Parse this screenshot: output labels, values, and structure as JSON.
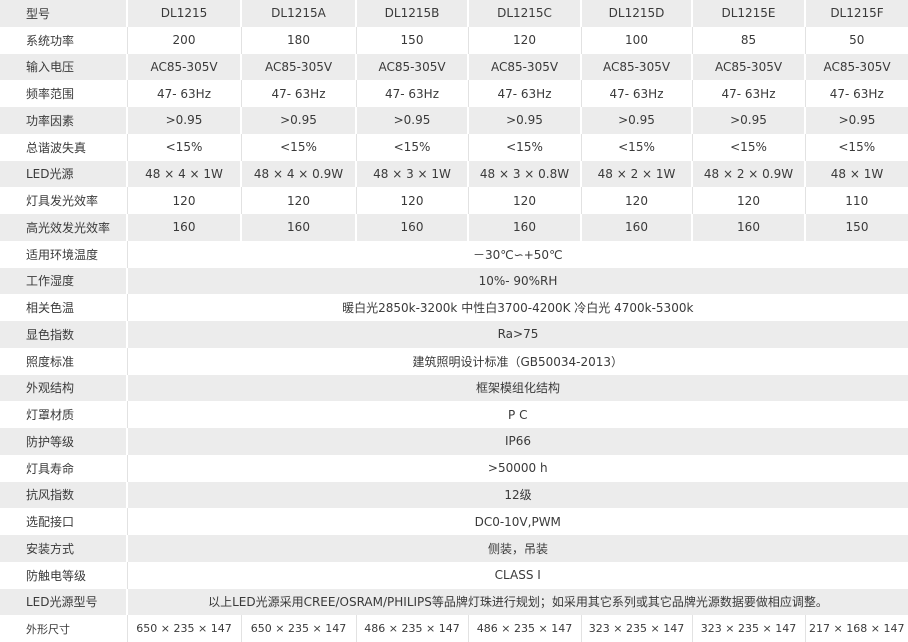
{
  "models": [
    "DL1215",
    "DL1215A",
    "DL1215B",
    "DL1215C",
    "DL1215D",
    "DL1215E",
    "DL1215F"
  ],
  "header_label": "型号",
  "rows_multi": [
    {
      "label": "系统功率",
      "values": [
        "200",
        "180",
        "150",
        "120",
        "100",
        "85",
        "50"
      ]
    },
    {
      "label": "输入电压",
      "values": [
        "AC85-305V",
        "AC85-305V",
        "AC85-305V",
        "AC85-305V",
        "AC85-305V",
        "AC85-305V",
        "AC85-305V"
      ]
    },
    {
      "label": "频率范围",
      "values": [
        "47- 63Hz",
        "47- 63Hz",
        "47- 63Hz",
        "47- 63Hz",
        "47- 63Hz",
        "47- 63Hz",
        "47- 63Hz"
      ]
    },
    {
      "label": "功率因素",
      "values": [
        ">0.95",
        ">0.95",
        ">0.95",
        ">0.95",
        ">0.95",
        ">0.95",
        ">0.95"
      ]
    },
    {
      "label": "总谐波失真",
      "values": [
        "<15%",
        "<15%",
        "<15%",
        "<15%",
        "<15%",
        "<15%",
        "<15%"
      ]
    },
    {
      "label": "LED光源",
      "values": [
        "48 × 4 × 1W",
        "48 × 4 × 0.9W",
        "48 × 3 × 1W",
        "48 × 3 × 0.8W",
        "48 × 2 × 1W",
        "48 × 2 × 0.9W",
        "48 × 1W"
      ]
    },
    {
      "label": "灯具发光效率",
      "values": [
        "120",
        "120",
        "120",
        "120",
        "120",
        "120",
        "110"
      ]
    },
    {
      "label": "高光效发光效率",
      "values": [
        "160",
        "160",
        "160",
        "160",
        "160",
        "160",
        "150"
      ]
    }
  ],
  "rows_single": [
    {
      "label": "适用环境温度",
      "value": "－30℃∽+50℃"
    },
    {
      "label": "工作湿度",
      "value": "10%- 90%RH"
    },
    {
      "label": "相关色温",
      "value": "暖白光2850k-3200k 中性白3700-4200K 冷白光 4700k-5300k"
    },
    {
      "label": "显色指数",
      "value": "Ra>75"
    },
    {
      "label": "照度标准",
      "value": "建筑照明设计标准（GB50034-2013）"
    },
    {
      "label": "外观结构",
      "value": "框架模组化结构"
    },
    {
      "label": "灯罩材质",
      "value": "P C"
    },
    {
      "label": "防护等级",
      "value": "IP66"
    },
    {
      "label": "灯具寿命",
      "value": ">50000 h"
    },
    {
      "label": "抗风指数",
      "value": "12级"
    },
    {
      "label": "选配接口",
      "value": "DC0-10V,PWM"
    },
    {
      "label": "安装方式",
      "value": "侧装，吊装"
    },
    {
      "label": "防触电等级",
      "value": "CLASS Ⅰ"
    },
    {
      "label": "LED光源型号",
      "value": "以上LED光源采用CREE/OSRAM/PHILIPS等品牌灯珠进行规划；如采用其它系列或其它品牌光源数据要做相应调整。"
    }
  ],
  "dimensions": {
    "label": "外形尺寸",
    "values": [
      "650 × 235 × 147",
      "650 × 235 × 147",
      "486 × 235 × 147",
      "486 × 235 × 147",
      "323 × 235 × 147",
      "323 × 235 × 147",
      "217 × 168 × 147"
    ]
  }
}
